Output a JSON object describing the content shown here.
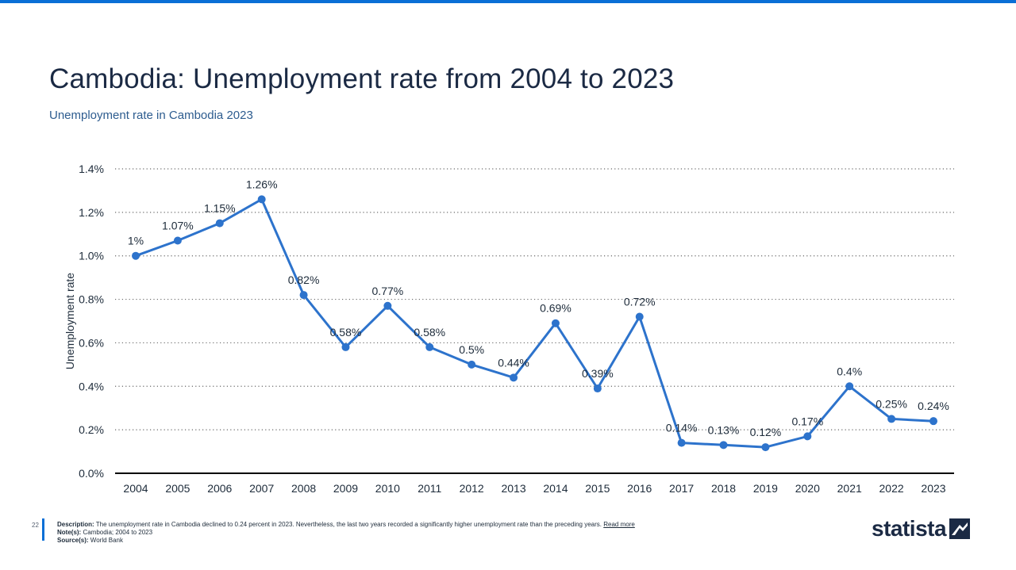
{
  "header": {
    "title": "Cambodia: Unemployment rate from 2004 to 2023",
    "subtitle": "Unemployment rate in Cambodia 2023"
  },
  "chart_data": {
    "type": "line",
    "title": "Cambodia: Unemployment rate from 2004 to 2023",
    "subtitle": "Unemployment rate in Cambodia 2023",
    "xlabel": "",
    "ylabel": "Unemployment rate",
    "x": [
      "2004",
      "2005",
      "2006",
      "2007",
      "2008",
      "2009",
      "2010",
      "2011",
      "2012",
      "2013",
      "2014",
      "2015",
      "2016",
      "2017",
      "2018",
      "2019",
      "2020",
      "2021",
      "2022",
      "2023"
    ],
    "series": [
      {
        "values": [
          1.0,
          1.07,
          1.15,
          1.26,
          0.82,
          0.58,
          0.77,
          0.58,
          0.5,
          0.44,
          0.69,
          0.39,
          0.72,
          0.14,
          0.13,
          0.12,
          0.17,
          0.4,
          0.25,
          0.24
        ],
        "labels": [
          "1%",
          "1.07%",
          "1.15%",
          "1.26%",
          "0.82%",
          "0.58%",
          "0.77%",
          "0.58%",
          "0.5%",
          "0.44%",
          "0.69%",
          "0.39%",
          "0.72%",
          "0.14%",
          "0.13%",
          "0.12%",
          "0.17%",
          "0.4%",
          "0.25%",
          "0.24%"
        ],
        "color": "#2d73cc"
      }
    ],
    "ylim": [
      0,
      1.4
    ],
    "yticks": [
      0,
      0.2,
      0.4,
      0.6,
      0.8,
      1.0,
      1.2,
      1.4
    ],
    "ytick_labels": [
      "0.0%",
      "0.2%",
      "0.4%",
      "0.6%",
      "0.8%",
      "1.0%",
      "1.2%",
      "1.4%"
    ],
    "grid": true,
    "legend": "none"
  },
  "footer": {
    "page_number": "22",
    "description_label": "Description:",
    "description": "The unemployment rate in Cambodia declined to 0.24 percent in 2023. Nevertheless, the last two years recorded a significantly higher unemployment rate than the preceding years.",
    "read_more": "Read more",
    "notes_label": "Note(s):",
    "notes": "Cambodia; 2004 to 2023",
    "source_label": "Source(s):",
    "source": "World Bank"
  },
  "branding": {
    "logo_text": "statista",
    "logo_icon": "statista-logo-icon"
  }
}
